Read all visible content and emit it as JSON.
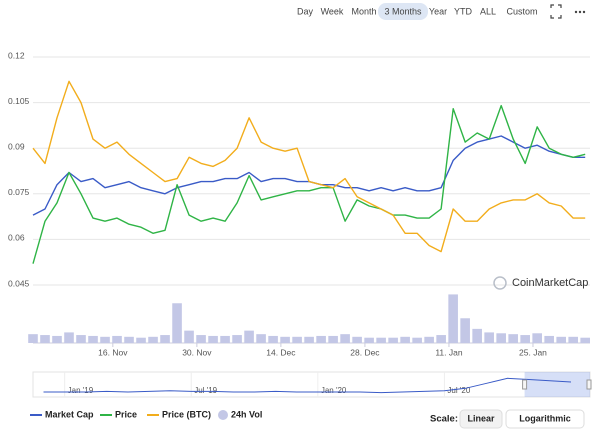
{
  "toolbar": {
    "ranges": [
      "Day",
      "Week",
      "Month",
      "3 Months",
      "Year",
      "YTD",
      "ALL",
      "Custom"
    ],
    "selected": 3
  },
  "chart_data": {
    "type": "line",
    "watermark": "CoinMarketCap",
    "x": [
      0,
      2,
      4,
      6,
      8,
      10,
      12,
      14,
      16,
      18,
      20,
      22,
      24,
      26,
      28,
      30,
      32,
      34,
      36,
      38,
      40,
      42,
      44,
      46,
      48,
      50,
      52,
      54,
      56,
      58,
      60,
      62,
      64,
      66,
      68,
      70,
      72,
      74,
      76,
      78,
      80,
      82,
      84,
      86,
      88,
      90,
      92
    ],
    "xlim": [
      0,
      92.8
    ],
    "xticks": [
      {
        "value": 13.3,
        "label": "16. Nov"
      },
      {
        "value": 27.3,
        "label": "30. Nov"
      },
      {
        "value": 41.3,
        "label": "14. Dec"
      },
      {
        "value": 55.3,
        "label": "28. Dec"
      },
      {
        "value": 69.3,
        "label": "11. Jan"
      },
      {
        "value": 83.3,
        "label": "25. Jan"
      }
    ],
    "ylim": [
      0.045,
      0.12
    ],
    "yticks": [
      0.045,
      0.06,
      0.075,
      0.09,
      0.105,
      0.12
    ],
    "y2lim": [
      0,
      60
    ],
    "grid": true,
    "series": [
      {
        "name": "Market Cap",
        "color": "#3a5bc7",
        "type": "line",
        "values": [
          0.068,
          0.07,
          0.078,
          0.082,
          0.079,
          0.08,
          0.077,
          0.078,
          0.079,
          0.077,
          0.076,
          0.075,
          0.077,
          0.078,
          0.079,
          0.079,
          0.08,
          0.08,
          0.082,
          0.079,
          0.08,
          0.08,
          0.079,
          0.079,
          0.078,
          0.078,
          0.077,
          0.077,
          0.076,
          0.077,
          0.076,
          0.077,
          0.076,
          0.076,
          0.077,
          0.086,
          0.09,
          0.092,
          0.093,
          0.094,
          0.092,
          0.09,
          0.091,
          0.089,
          0.088,
          0.087,
          0.087
        ]
      },
      {
        "name": "Price",
        "color": "#2fb446",
        "type": "line",
        "values": [
          0.052,
          0.066,
          0.072,
          0.082,
          0.075,
          0.067,
          0.066,
          0.067,
          0.065,
          0.064,
          0.062,
          0.063,
          0.078,
          0.068,
          0.066,
          0.067,
          0.066,
          0.072,
          0.081,
          0.073,
          0.074,
          0.075,
          0.076,
          0.076,
          0.077,
          0.077,
          0.066,
          0.073,
          0.071,
          0.07,
          0.068,
          0.068,
          0.067,
          0.067,
          0.07,
          0.103,
          0.092,
          0.095,
          0.093,
          0.104,
          0.093,
          0.085,
          0.097,
          0.09,
          0.088,
          0.087,
          0.088
        ]
      },
      {
        "name": "Price (BTC)",
        "color": "#f2ad1c",
        "type": "line",
        "values": [
          0.09,
          0.085,
          0.1,
          0.112,
          0.105,
          0.093,
          0.09,
          0.092,
          0.088,
          0.085,
          0.082,
          0.079,
          0.08,
          0.087,
          0.085,
          0.084,
          0.086,
          0.09,
          0.1,
          0.092,
          0.09,
          0.089,
          0.09,
          0.079,
          0.078,
          0.077,
          0.08,
          0.074,
          0.072,
          0.07,
          0.068,
          0.062,
          0.062,
          0.058,
          0.056,
          0.07,
          0.066,
          0.066,
          0.07,
          0.072,
          0.073,
          0.073,
          0.075,
          0.072,
          0.071,
          0.067,
          0.067
        ]
      },
      {
        "name": "24h Vol",
        "color": "#c3c7e6",
        "type": "column",
        "axis": "y2",
        "values": [
          10,
          9,
          8,
          12,
          9,
          8,
          7,
          8,
          7,
          6,
          7,
          9,
          45,
          14,
          9,
          8,
          8,
          9,
          14,
          10,
          8,
          7,
          7,
          7,
          8,
          8,
          10,
          7,
          6,
          6,
          6,
          7,
          6,
          7,
          9,
          55,
          28,
          16,
          12,
          11,
          10,
          9,
          11,
          8,
          7,
          7,
          6
        ]
      }
    ],
    "navigator": {
      "x": [
        -1,
        0,
        1,
        2,
        3,
        4,
        5,
        6,
        7,
        8,
        9,
        10,
        11,
        12,
        13,
        14,
        15,
        16,
        17,
        18,
        19,
        20,
        21,
        22,
        23,
        24
      ],
      "values": [
        8,
        8,
        8,
        9,
        8,
        9,
        10,
        9,
        9,
        8,
        8,
        9,
        8,
        8,
        8,
        8,
        7,
        8,
        9,
        10,
        14,
        22,
        30,
        28,
        26,
        24
      ],
      "xlim": [
        -1.5,
        24.9
      ],
      "ylim": [
        0,
        40
      ],
      "xticks": [
        {
          "value": 0,
          "label": "Jan '19"
        },
        {
          "value": 6,
          "label": "Jul '19"
        },
        {
          "value": 12,
          "label": "Jan '20"
        },
        {
          "value": 18,
          "label": "Jul '20"
        }
      ],
      "selected_range": [
        21.8,
        24.9
      ]
    }
  },
  "scale": {
    "label": "Scale:",
    "options": [
      "Linear",
      "Logarithmic"
    ]
  }
}
